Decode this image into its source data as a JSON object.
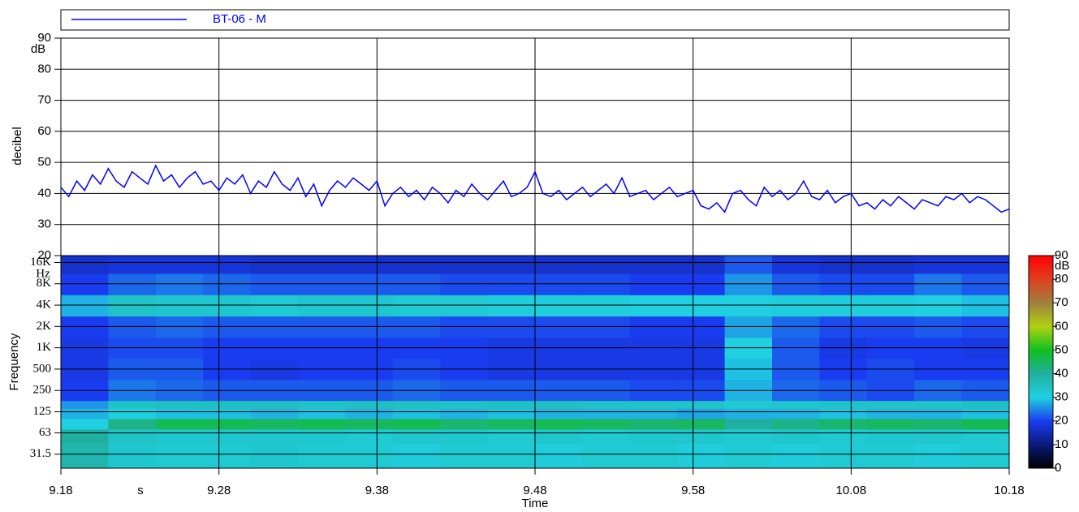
{
  "chart_data": [
    {
      "type": "line",
      "y_label": "decibel",
      "y_unit": "dB",
      "ylim": [
        20,
        90
      ],
      "yticks": [
        20,
        30,
        40,
        50,
        60,
        70,
        80,
        90
      ],
      "grid": true,
      "legend_position": "top",
      "series": [
        {
          "name": "BT-06 - M",
          "color": "#0000ff",
          "values": [
            42,
            39,
            44,
            41,
            46,
            43,
            48,
            44,
            42,
            47,
            45,
            43,
            49,
            44,
            46,
            42,
            45,
            47,
            43,
            44,
            41,
            45,
            43,
            46,
            40,
            44,
            42,
            47,
            43,
            41,
            45,
            39,
            43,
            36,
            41,
            44,
            42,
            45,
            43,
            41,
            44,
            36,
            40,
            42,
            39,
            41,
            38,
            42,
            40,
            37,
            41,
            39,
            43,
            40,
            38,
            41,
            44,
            39,
            40,
            42,
            47,
            40,
            39,
            41,
            38,
            40,
            42,
            39,
            41,
            43,
            40,
            45,
            39,
            40,
            41,
            38,
            40,
            42,
            39,
            40,
            41,
            36,
            35,
            37,
            34,
            40,
            41,
            38,
            36,
            42,
            39,
            41,
            38,
            40,
            44,
            39,
            38,
            41,
            37,
            39,
            40,
            36,
            37,
            35,
            38,
            36,
            39,
            37,
            35,
            38,
            37,
            36,
            39,
            38,
            40,
            37,
            39,
            38,
            36,
            34,
            35
          ]
        }
      ]
    },
    {
      "type": "heatmap",
      "y_label": "Frequency",
      "y_unit": "Hz",
      "x_label": "Time",
      "x_unit": "s",
      "log_y": true,
      "grid": true,
      "ylim": [
        20,
        20000
      ],
      "yticks": [
        {
          "value": 16000,
          "label": "16K"
        },
        {
          "value": 8000,
          "label": "8K"
        },
        {
          "value": 4000,
          "label": "4K"
        },
        {
          "value": 2000,
          "label": "2K"
        },
        {
          "value": 1000,
          "label": "1K"
        },
        500,
        250,
        125,
        63,
        31.5
      ],
      "xlim": [
        0,
        60
      ],
      "xticks": [
        {
          "value": 0,
          "label": "9.18"
        },
        {
          "value": 10,
          "label": "9.28"
        },
        {
          "value": 20,
          "label": "9.38"
        },
        {
          "value": 30,
          "label": "9.48"
        },
        {
          "value": 40,
          "label": "9.58"
        },
        {
          "value": 50,
          "label": "10.08"
        },
        {
          "value": 60,
          "label": "10.18"
        }
      ],
      "bins": [
        20,
        45,
        71,
        100,
        140,
        180,
        355,
        710,
        1400,
        2800,
        5600,
        11200,
        20000
      ],
      "values": [
        [
          38,
          33,
          32,
          32,
          33,
          32,
          32,
          31,
          32,
          32,
          31,
          32,
          32,
          31,
          32,
          31,
          32,
          32,
          31,
          32
        ],
        [
          40,
          34,
          33,
          33,
          33,
          33,
          32,
          33,
          33,
          32,
          33,
          32,
          33,
          33,
          32,
          33,
          32,
          33,
          33,
          32
        ],
        [
          30,
          42,
          46,
          46,
          45,
          46,
          45,
          46,
          44,
          45,
          46,
          45,
          44,
          45,
          40,
          42,
          44,
          45,
          44,
          46
        ],
        [
          28,
          30,
          29,
          29,
          28,
          29,
          28,
          29,
          28,
          29,
          28,
          28,
          28,
          27,
          28,
          28,
          29,
          28,
          28,
          29
        ],
        [
          26,
          34,
          35,
          35,
          35,
          34,
          35,
          35,
          34,
          35,
          35,
          34,
          34,
          34,
          32,
          33,
          34,
          34,
          34,
          35
        ],
        [
          20,
          24,
          23,
          22,
          22,
          22,
          22,
          23,
          22,
          22,
          22,
          22,
          21,
          21,
          28,
          23,
          22,
          21,
          23,
          22
        ],
        [
          19,
          22,
          22,
          20,
          19,
          20,
          20,
          21,
          20,
          19,
          19,
          19,
          19,
          19,
          29,
          22,
          20,
          21,
          20,
          20
        ],
        [
          19,
          21,
          21,
          20,
          20,
          20,
          20,
          20,
          20,
          19,
          19,
          19,
          19,
          19,
          30,
          22,
          19,
          20,
          20,
          19
        ],
        [
          20,
          22,
          23,
          22,
          22,
          22,
          22,
          22,
          21,
          21,
          21,
          21,
          20,
          20,
          27,
          23,
          21,
          21,
          22,
          21
        ],
        [
          28,
          34,
          33,
          33,
          32,
          33,
          33,
          32,
          32,
          31,
          31,
          31,
          30,
          30,
          30,
          31,
          31,
          31,
          30,
          29
        ],
        [
          20,
          23,
          24,
          23,
          22,
          22,
          22,
          22,
          21,
          21,
          21,
          21,
          20,
          20,
          26,
          22,
          21,
          21,
          24,
          22
        ],
        [
          17,
          18,
          18,
          18,
          17,
          17,
          17,
          17,
          17,
          17,
          17,
          17,
          17,
          17,
          22,
          18,
          17,
          17,
          18,
          18
        ]
      ],
      "colorbar": {
        "unit": "dB",
        "ticks": [
          0,
          10,
          20,
          30,
          40,
          50,
          60,
          70,
          80,
          90
        ],
        "colors": [
          "#000000",
          "#0a1a7a",
          "#1a3cf0",
          "#20d0e0",
          "#20b0a0",
          "#10c020",
          "#b0d010",
          "#a08040",
          "#e04020",
          "#ff0000"
        ]
      }
    }
  ]
}
